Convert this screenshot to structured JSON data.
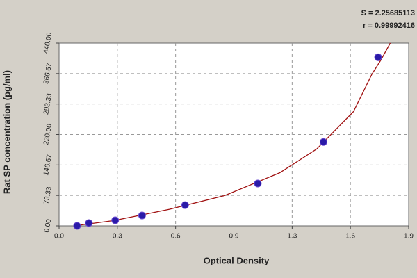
{
  "chart_data": {
    "type": "scatter",
    "annotations": [
      "S = 2.25685113",
      "r = 0.99992416"
    ],
    "xlabel": "Optical Density",
    "ylabel": "Rat SP concentration (pg/ml)",
    "xlim": [
      0,
      1.9
    ],
    "ylim": [
      0,
      440
    ],
    "xticks": [
      {
        "value": 0,
        "label": "0.0"
      },
      {
        "value": 0.3167,
        "label": "0.3"
      },
      {
        "value": 0.6333,
        "label": "0.6"
      },
      {
        "value": 0.95,
        "label": "0.9"
      },
      {
        "value": 1.2667,
        "label": "1.3"
      },
      {
        "value": 1.5833,
        "label": "1.6"
      },
      {
        "value": 1.9,
        "label": "1.9"
      }
    ],
    "yticks": [
      {
        "value": 0,
        "label": "0.00"
      },
      {
        "value": 73.333,
        "label": "73.33"
      },
      {
        "value": 146.667,
        "label": "146.67"
      },
      {
        "value": 220,
        "label": "220.00"
      },
      {
        "value": 293.333,
        "label": "293.33"
      },
      {
        "value": 366.667,
        "label": "366.67"
      },
      {
        "value": 440,
        "label": "440.00"
      }
    ],
    "grid": true,
    "series": [
      {
        "mode": "markers",
        "color": "#2a1aa8",
        "x": [
          0.098,
          0.162,
          0.305,
          0.451,
          0.685,
          1.08,
          1.437,
          1.734
        ],
        "values": [
          0,
          6.7,
          13.4,
          25,
          50,
          102,
          202,
          406
        ]
      },
      {
        "mode": "line",
        "color": "#a01010",
        "x": [
          0.08,
          0.3,
          0.6,
          0.9,
          1.2,
          1.4,
          1.6,
          1.7,
          1.75,
          1.8
        ],
        "values": [
          0,
          13,
          40,
          73,
          128,
          185,
          275,
          365,
          400,
          440
        ]
      }
    ]
  }
}
